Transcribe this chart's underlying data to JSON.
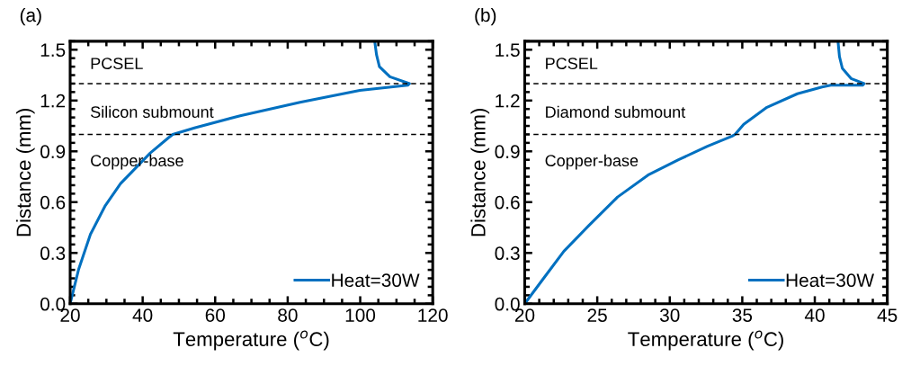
{
  "chart_data": [
    {
      "type": "line",
      "title": "(a)",
      "xlabel": "Temperature ($^{o}$C)",
      "ylabel": "Distance (mm)",
      "xlim": [
        20,
        120
      ],
      "xticks": [
        20,
        40,
        60,
        80,
        100,
        120
      ],
      "ylim": [
        0,
        1.55
      ],
      "yticks": [
        {
          "value": 0,
          "label": "0.0"
        },
        0.3,
        0.6,
        0.9,
        1.2,
        1.5
      ],
      "legend": "bottom right",
      "grid": false,
      "series": [
        {
          "name": "Heat=30W",
          "color": "#0070c0",
          "x": [
            20,
            22.3,
            25.6,
            29.7,
            33.9,
            38,
            42.1,
            47.1,
            48.3,
            54.5,
            66.9,
            83.4,
            99.9,
            113.1,
            113.6,
            108.2,
            105.3,
            104.5,
            104
          ],
          "values": [
            0,
            0.2,
            0.41,
            0.58,
            0.71,
            0.8,
            0.89,
            0.98,
            1.0,
            1.04,
            1.11,
            1.19,
            1.26,
            1.29,
            1.3,
            1.34,
            1.4,
            1.47,
            1.55
          ]
        }
      ],
      "ref_lines": [
        {
          "axis": "y",
          "value": 1.3,
          "color": "#000000",
          "line_style": "dashed"
        },
        {
          "axis": "y",
          "value": 1.0,
          "color": "#000000",
          "line_style": "dashed"
        }
      ],
      "annotations": [
        "PCSEL",
        "Silicon submount",
        "Copper-base"
      ]
    },
    {
      "type": "line",
      "title": "(b)",
      "xlabel": "Temperature ($^{o}$C)",
      "ylabel": "Distance (mm)",
      "xlim": [
        20,
        45
      ],
      "xticks": [
        20,
        25,
        30,
        35,
        40,
        45
      ],
      "ylim": [
        0,
        1.55
      ],
      "yticks": [
        {
          "value": 0,
          "label": "0.0"
        },
        0.3,
        0.6,
        0.9,
        1.2,
        1.5
      ],
      "legend": "bottom right",
      "grid": false,
      "series": [
        {
          "name": "Heat=30W",
          "color": "#0070c0",
          "x": [
            20,
            21.3,
            22.7,
            24.4,
            26.4,
            28.5,
            30.6,
            32.6,
            34.3,
            34.5,
            35.1,
            36.7,
            38.8,
            40.5,
            41.1,
            43.3,
            43.4,
            42.5,
            41.9,
            41.7,
            41.6
          ],
          "values": [
            0,
            0.15,
            0.31,
            0.46,
            0.63,
            0.76,
            0.85,
            0.93,
            0.99,
            1.0,
            1.06,
            1.16,
            1.24,
            1.28,
            1.29,
            1.29,
            1.3,
            1.33,
            1.39,
            1.46,
            1.55
          ]
        }
      ],
      "ref_lines": [
        {
          "axis": "y",
          "value": 1.3,
          "color": "#000000",
          "line_style": "dashed"
        },
        {
          "axis": "y",
          "value": 1.0,
          "color": "#000000",
          "line_style": "dashed"
        }
      ],
      "annotations": [
        "PCSEL",
        "Diamond submount",
        "Copper-base"
      ]
    }
  ]
}
